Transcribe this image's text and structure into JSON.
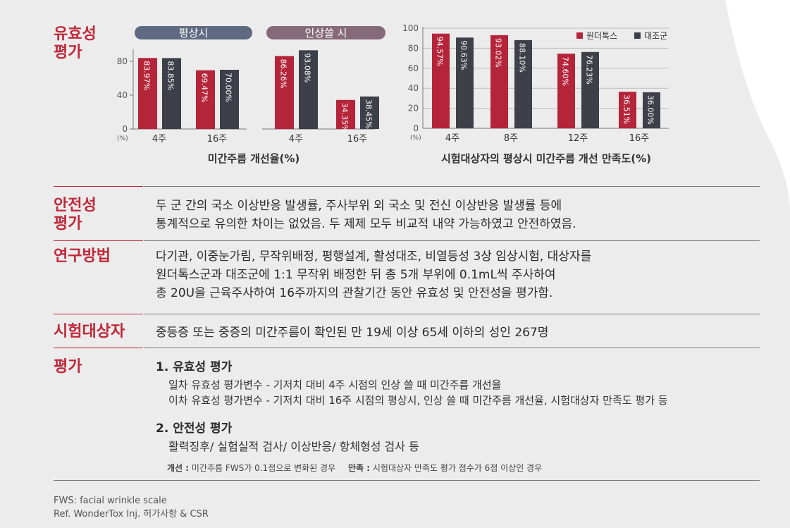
{
  "efficacy_title_line1": "유효성",
  "efficacy_title_line2": "평가",
  "chart_data": [
    {
      "type": "bar",
      "panels": [
        {
          "header": "평상시",
          "categories": [
            "4주",
            "16주"
          ]
        },
        {
          "header": "인상쓸 시",
          "categories": [
            "4주",
            "16주"
          ]
        }
      ],
      "series": [
        {
          "name": "원더톡스",
          "color": "#b5253a"
        },
        {
          "name": "대조군",
          "color": "#3d4049"
        }
      ],
      "values": {
        "rest": {
          "원더톡스": [
            83.97,
            69.47
          ],
          "대조군": [
            83.85,
            70.0
          ]
        },
        "frown": {
          "원더톡스": [
            86.26,
            34.35
          ],
          "대조군": [
            93.08,
            38.45
          ]
        }
      },
      "labels": {
        "rest": {
          "원더톡스": [
            "83.97",
            "69.47"
          ],
          "대조군": [
            "83.85",
            "70.00"
          ]
        },
        "frown": {
          "원더톡스": [
            "86.26",
            "34.35"
          ],
          "대조군": [
            "93.08",
            "38.45"
          ]
        }
      },
      "value_suffix": "%",
      "yticks": [
        "0",
        "40",
        "80"
      ],
      "ylim": [
        0,
        100
      ],
      "yunit": "(%)",
      "xlabel": "미간주름 개선율(%)"
    },
    {
      "type": "bar",
      "categories": [
        "4주",
        "8주",
        "12주",
        "16주"
      ],
      "series": [
        {
          "name": "원더톡스",
          "color": "#b5253a",
          "values": [
            94.57,
            93.02,
            74.6,
            36.51
          ],
          "labels": [
            "94.57",
            "93.02",
            "74.60",
            "36.51"
          ]
        },
        {
          "name": "대조군",
          "color": "#3d4049",
          "values": [
            90.63,
            88.1,
            76.23,
            36.0
          ],
          "labels": [
            "90.63",
            "88.10",
            "76.23",
            "36.00"
          ]
        }
      ],
      "value_suffix": "%",
      "yticks": [
        "0",
        "20",
        "40",
        "60",
        "80",
        "100"
      ],
      "ylim": [
        0,
        100
      ],
      "yunit": "(%)",
      "grid": true,
      "legend": "top-right",
      "xlabel": "시험대상자의 평상시 미간주름 개선 만족도(%)"
    }
  ],
  "safety": {
    "title_line1": "안전성",
    "title_line2": "평가",
    "lines": [
      "두 군 간의 국소 이상반응 발생률, 주사부위 외 국소 및 전신 이상반응 발생률 등에",
      "통계적으로 유의한 차이는 없었음. 두 제제 모두 비교적 내약 가능하였고 안전하였음."
    ]
  },
  "method": {
    "title": "연구방법",
    "lines": [
      "다기관, 이중눈가림, 무작위배정, 평행설계, 활성대조, 비열등성 3상 임상시험, 대상자를",
      "원더톡스군과 대조군에 1:1 무작위 배정한 뒤 총 5개 부위에 0.1mL씩 주사하여",
      "총 20U을 근육주사하여 16주까지의 관찰기간 동안 유효성 및 안전성을 평가함."
    ]
  },
  "subjects": {
    "title": "시험대상자",
    "text": "중등증 또는 중증의 미간주름이 확인된 만 19세 이상 65세 이하의 성인 267명"
  },
  "evaluation": {
    "title": "평가",
    "item1_title": "1. 유효성 평가",
    "item1_lines": [
      "일차 유효성 평가변수 - 기저치 대비 4주 시점의 인상 쓸 때 미간주름 개선율",
      "이차 유효성 평가변수 - 기저치 대비 16주 시점의 평상시, 인상 쓸 때 미간주름 개선율, 시험대상자 만족도 평가 등"
    ],
    "item2_title": "2. 안전성 평가",
    "item2_line": "활력징후/ 실험실적 검사/ 이상반응/ 항체형성 검사 등",
    "note1_label": "개선 :",
    "note1_text": "미간주름 FWS가 0.1점으로 변화된 경우",
    "note2_label": "만족 :",
    "note2_text": "시험대상자 만족도 평가 점수가 6점 이상인 경우"
  },
  "footer": {
    "line1": "FWS: facial wrinkle scale",
    "line2": "Ref. WonderTox Inj. 허가사항 & CSR"
  }
}
